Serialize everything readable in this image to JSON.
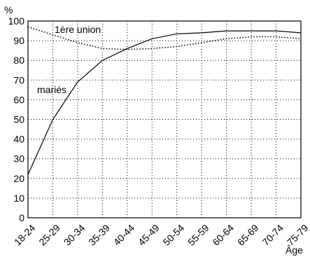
{
  "chart_data": {
    "type": "line",
    "ylabel": "%",
    "xlabel": "Âge",
    "ylim": [
      0,
      100
    ],
    "yticks": [
      0,
      10,
      20,
      30,
      40,
      50,
      60,
      70,
      80,
      90,
      100
    ],
    "grid": true,
    "categories": [
      "18-24",
      "25-29",
      "30-34",
      "35-39",
      "40-44",
      "45-49",
      "50-54",
      "55-59",
      "60-64",
      "65-69",
      "70-74",
      "75-79"
    ],
    "series": [
      {
        "name": "mariés",
        "style": "solid",
        "values": [
          22,
          50,
          69,
          80,
          86,
          91,
          93.5,
          94,
          95,
          95,
          95,
          94
        ]
      },
      {
        "name": "1ère union",
        "style": "dotted",
        "values": [
          97,
          93,
          89,
          86,
          85.5,
          86,
          87,
          89,
          91,
          92,
          92,
          91
        ]
      }
    ]
  }
}
